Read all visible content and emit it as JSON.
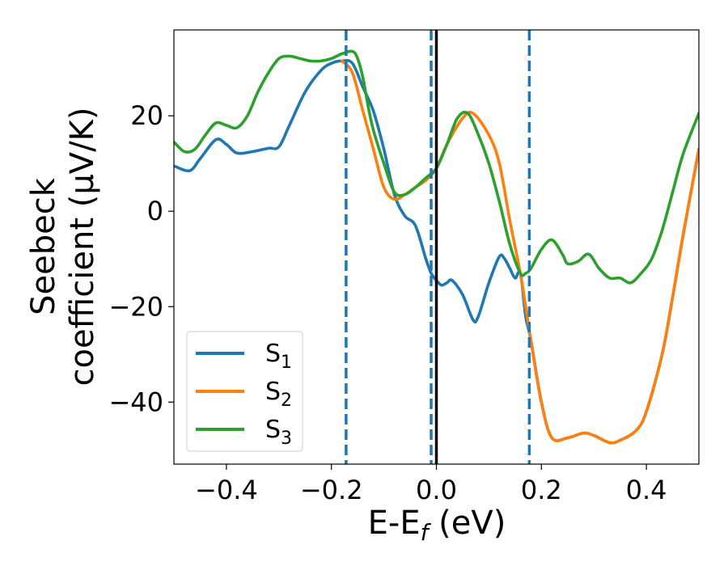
{
  "chart_data": {
    "type": "line",
    "xlabel": "E-E",
    "xlabel_sub": "f",
    "xlabel_unit": " (eV)",
    "ylabel_line1": "Seebeck",
    "ylabel_line2": "coefficient  (μV/K)",
    "xlim": [
      -0.5,
      0.5
    ],
    "ylim": [
      -53,
      38
    ],
    "xticks": [
      -0.4,
      -0.2,
      0.0,
      0.2,
      0.4
    ],
    "xtick_labels": [
      "−0.4",
      "−0.2",
      "0.0",
      "0.2",
      "0.4"
    ],
    "yticks": [
      -40,
      -20,
      0,
      20
    ],
    "ytick_labels": [
      "−40",
      "−20",
      "0",
      "20"
    ],
    "grid": false,
    "legend_position": "lower-left",
    "series": [
      {
        "name": "S",
        "sub": "1",
        "color": "#1f77b4",
        "x": [
          -0.5,
          -0.47,
          -0.45,
          -0.42,
          -0.4,
          -0.38,
          -0.35,
          -0.32,
          -0.3,
          -0.28,
          -0.25,
          -0.22,
          -0.2,
          -0.18,
          -0.16,
          -0.14,
          -0.12,
          -0.1,
          -0.08,
          -0.06,
          -0.04,
          -0.02,
          -0.01,
          0.0,
          0.01,
          0.02,
          0.03,
          0.05,
          0.07,
          0.08,
          0.1,
          0.12,
          0.13,
          0.14,
          0.15,
          0.16,
          0.17,
          0.18,
          0.2,
          0.22,
          0.25,
          0.28,
          0.3,
          0.33,
          0.35,
          0.38,
          0.4,
          0.43,
          0.45,
          0.47,
          0.5
        ],
        "y": [
          9.5,
          8.5,
          11,
          15,
          14,
          12.2,
          12.5,
          13.2,
          13.5,
          18,
          25,
          29.5,
          31,
          31.5,
          31,
          26,
          21,
          13,
          3.5,
          -1,
          -3,
          -10,
          -13,
          -14.5,
          -15.5,
          -15,
          -14.5,
          -17.5,
          -22.8,
          -22,
          -15,
          -9.5,
          -10,
          -12,
          -14,
          -13,
          -22,
          -27,
          -40,
          -47.5,
          -47.5,
          -46.5,
          -47,
          -48.5,
          -48,
          -46,
          -42,
          -30,
          -18,
          -5,
          13
        ]
      },
      {
        "name": "S",
        "sub": "2",
        "color": "#ff7f0e",
        "x": [
          -0.18,
          -0.16,
          -0.14,
          -0.12,
          -0.1,
          -0.08,
          -0.06,
          -0.04,
          -0.02,
          0.0,
          0.02,
          0.05,
          0.07,
          0.1,
          0.12,
          0.14,
          0.16,
          0.17,
          0.18,
          0.2,
          0.22,
          0.25,
          0.28,
          0.3,
          0.33,
          0.35,
          0.38,
          0.4,
          0.43,
          0.45,
          0.47,
          0.5
        ],
        "y": [
          31.5,
          29,
          21,
          13,
          5,
          2.5,
          3.5,
          5,
          6.5,
          9,
          14,
          19.5,
          20.5,
          16,
          10,
          -2,
          -13,
          -20,
          -27,
          -40,
          -47.5,
          -47.5,
          -46.5,
          -47,
          -48.5,
          -48,
          -46,
          -42,
          -30,
          -18,
          -5,
          13
        ]
      },
      {
        "name": "S",
        "sub": "3",
        "color": "#2ca02c",
        "x": [
          -0.5,
          -0.48,
          -0.46,
          -0.44,
          -0.42,
          -0.4,
          -0.38,
          -0.36,
          -0.34,
          -0.32,
          -0.3,
          -0.28,
          -0.26,
          -0.24,
          -0.22,
          -0.2,
          -0.18,
          -0.16,
          -0.15,
          -0.14,
          -0.13,
          -0.12,
          -0.1,
          -0.08,
          -0.06,
          -0.04,
          -0.02,
          0.0,
          0.02,
          0.04,
          0.06,
          0.08,
          0.1,
          0.12,
          0.14,
          0.16,
          0.17,
          0.18,
          0.2,
          0.22,
          0.24,
          0.25,
          0.27,
          0.29,
          0.31,
          0.33,
          0.35,
          0.37,
          0.39,
          0.41,
          0.43,
          0.45,
          0.47,
          0.5
        ],
        "y": [
          14.5,
          12.5,
          13,
          16,
          18.5,
          18,
          17.5,
          20,
          25,
          29,
          32,
          32.5,
          32,
          31.5,
          31.5,
          32,
          33,
          33.5,
          32,
          28,
          22,
          17,
          10,
          4,
          3.5,
          5,
          7,
          9,
          14,
          19.5,
          20.5,
          16,
          10,
          2,
          -7,
          -13,
          -13,
          -12,
          -8,
          -6,
          -9,
          -11,
          -10.5,
          -9,
          -12,
          -14,
          -14,
          -15,
          -13,
          -10,
          -4,
          4,
          12,
          20.5
        ]
      }
    ],
    "vlines_dashed": {
      "x": [
        -0.172,
        -0.01,
        0.177
      ],
      "color": "#1f77b4"
    },
    "vline_solid": {
      "x": 0.0,
      "color": "#000000"
    }
  }
}
